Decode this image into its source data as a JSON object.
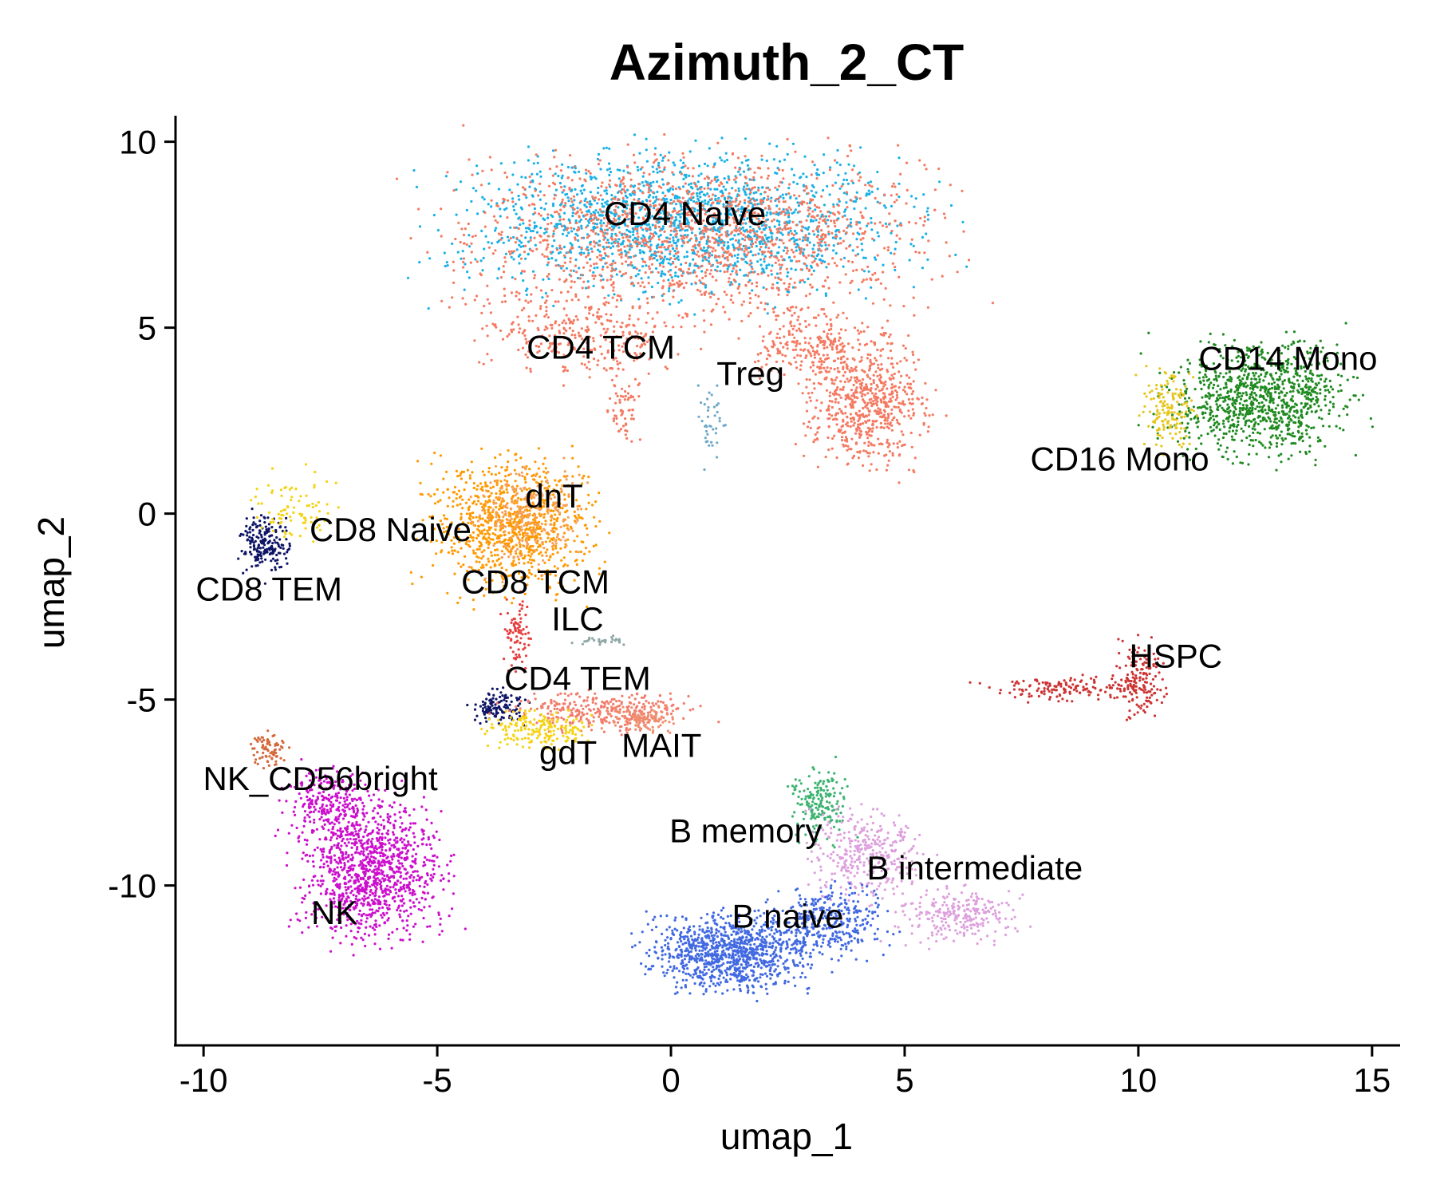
{
  "chart_data": {
    "type": "scatter",
    "title": "Azimuth_2_CT",
    "xlabel": "umap_1",
    "ylabel": "umap_2",
    "xlim": [
      -10.6,
      15.6
    ],
    "ylim": [
      -14.3,
      10.7
    ],
    "xticks": [
      -10,
      -5,
      0,
      5,
      10,
      15
    ],
    "yticks": [
      -10,
      -5,
      0,
      5,
      10
    ],
    "xtick_labels": [
      "-10",
      "-5",
      "0",
      "5",
      "10",
      "15"
    ],
    "ytick_labels": [
      "-10",
      "-5",
      "0",
      "5",
      "10"
    ],
    "grid": false,
    "legend": "none",
    "series": [
      {
        "name": "CD4 Naive",
        "color": "#1AB1E6",
        "label": {
          "x": 0.3,
          "y": 8.0
        },
        "blobs": [
          {
            "cx": 0.3,
            "cy": 7.8,
            "rx": 4.0,
            "ry": 1.6,
            "n": 1700
          }
        ]
      },
      {
        "name": "CD4 TCM",
        "color": "#F47A62",
        "label": {
          "x": -1.5,
          "y": 4.4
        },
        "blobs": [
          {
            "cx": 0.5,
            "cy": 7.5,
            "rx": 4.2,
            "ry": 1.9,
            "n": 1500
          },
          {
            "cx": -1.8,
            "cy": 4.8,
            "rx": 1.8,
            "ry": 0.9,
            "n": 300
          },
          {
            "cx": 4.2,
            "cy": 3.0,
            "rx": 1.1,
            "ry": 1.5,
            "n": 650
          },
          {
            "cx": 3.0,
            "cy": 4.5,
            "rx": 1.0,
            "ry": 0.8,
            "n": 220
          },
          {
            "cx": -1.0,
            "cy": 2.8,
            "rx": 0.3,
            "ry": 0.8,
            "n": 60
          }
        ]
      },
      {
        "name": "Treg",
        "color": "#6FA8C9",
        "label": {
          "x": 1.7,
          "y": 3.7
        },
        "blobs": [
          {
            "cx": 0.9,
            "cy": 2.5,
            "rx": 0.25,
            "ry": 0.9,
            "n": 40
          }
        ]
      },
      {
        "name": "dnT",
        "color": "#FF9900",
        "label": {
          "x": -2.5,
          "y": 0.4
        },
        "blobs": [
          {
            "cx": -3.4,
            "cy": -0.3,
            "rx": 1.4,
            "ry": 1.5,
            "n": 900
          }
        ]
      },
      {
        "name": "CD8 Naive",
        "color": "#F5A05A",
        "label": {
          "x": -6.0,
          "y": -0.5
        },
        "blobs": [
          {
            "cx": -3.0,
            "cy": 0.0,
            "rx": 1.0,
            "ry": 1.2,
            "n": 250
          }
        ]
      },
      {
        "name": "CD8 TCM",
        "color": "#E63E3E",
        "label": {
          "x": -2.9,
          "y": -1.9
        },
        "blobs": [
          {
            "cx": -3.3,
            "cy": -3.2,
            "rx": 0.25,
            "ry": 0.9,
            "n": 80
          }
        ]
      },
      {
        "name": "CD8 TEM",
        "color": "#0E1466",
        "label": {
          "x": -8.6,
          "y": -2.1
        },
        "blobs": [
          {
            "cx": -8.7,
            "cy": -0.8,
            "rx": 0.45,
            "ry": 0.7,
            "n": 200
          },
          {
            "cx": -3.7,
            "cy": -5.2,
            "rx": 0.5,
            "ry": 0.4,
            "n": 120
          }
        ]
      },
      {
        "name": "ILC",
        "color": "#8FA8A8",
        "label": {
          "x": -2.0,
          "y": -2.9
        },
        "blobs": [
          {
            "cx": -1.5,
            "cy": -3.4,
            "rx": 0.6,
            "ry": 0.1,
            "n": 30
          }
        ]
      },
      {
        "name": "CD4 TEM",
        "color": "#F27B6A",
        "label": {
          "x": -2.0,
          "y": -4.5
        },
        "blobs": [
          {
            "cx": -1.5,
            "cy": -5.3,
            "rx": 1.6,
            "ry": 0.45,
            "n": 300
          }
        ]
      },
      {
        "name": "gdT",
        "color": "#F5D314",
        "label": {
          "x": -2.2,
          "y": -6.5
        },
        "blobs": [
          {
            "cx": -2.8,
            "cy": -5.8,
            "rx": 0.9,
            "ry": 0.45,
            "n": 200
          },
          {
            "cx": -8.0,
            "cy": 0.2,
            "rx": 0.8,
            "ry": 0.8,
            "n": 90
          }
        ]
      },
      {
        "name": "MAIT",
        "color": "#F08C6E",
        "label": {
          "x": -0.2,
          "y": -6.3
        },
        "blobs": [
          {
            "cx": -0.7,
            "cy": -5.5,
            "rx": 0.7,
            "ry": 0.35,
            "n": 120
          }
        ]
      },
      {
        "name": "NK_CD56bright",
        "color": "#D4683A",
        "label": {
          "x": -7.5,
          "y": -7.2
        },
        "blobs": [
          {
            "cx": -8.6,
            "cy": -6.3,
            "rx": 0.3,
            "ry": 0.35,
            "n": 80
          }
        ]
      },
      {
        "name": "NK",
        "color": "#CC0FCC",
        "label": {
          "x": -7.2,
          "y": -10.8
        },
        "blobs": [
          {
            "cx": -6.4,
            "cy": -9.6,
            "rx": 1.3,
            "ry": 1.6,
            "n": 1100
          },
          {
            "cx": -7.3,
            "cy": -7.8,
            "rx": 0.8,
            "ry": 0.8,
            "n": 250
          }
        ]
      },
      {
        "name": "B memory",
        "color": "#3CB371",
        "label": {
          "x": 1.6,
          "y": -8.6
        },
        "blobs": [
          {
            "cx": 3.2,
            "cy": -7.8,
            "rx": 0.5,
            "ry": 0.8,
            "n": 180
          }
        ]
      },
      {
        "name": "B intermediate",
        "color": "#DDA0DD",
        "label": {
          "x": 6.5,
          "y": -9.6
        },
        "blobs": [
          {
            "cx": 4.2,
            "cy": -9.2,
            "rx": 1.0,
            "ry": 1.0,
            "n": 350
          },
          {
            "cx": 6.2,
            "cy": -10.8,
            "rx": 1.1,
            "ry": 0.6,
            "n": 250
          }
        ]
      },
      {
        "name": "B naive",
        "color": "#4169E1",
        "label": {
          "x": 2.5,
          "y": -10.9
        },
        "blobs": [
          {
            "cx": 1.3,
            "cy": -11.8,
            "rx": 1.4,
            "ry": 0.9,
            "n": 1000
          },
          {
            "cx": 3.4,
            "cy": -11.0,
            "rx": 1.0,
            "ry": 0.8,
            "n": 350
          }
        ]
      },
      {
        "name": "CD14 Mono",
        "color": "#1F8A1F",
        "label": {
          "x": 13.2,
          "y": 4.1
        },
        "blobs": [
          {
            "cx": 12.6,
            "cy": 3.1,
            "rx": 1.6,
            "ry": 1.3,
            "n": 1000
          }
        ]
      },
      {
        "name": "CD16 Mono",
        "color": "#E6C619",
        "label": {
          "x": 9.6,
          "y": 1.4
        },
        "blobs": [
          {
            "cx": 10.6,
            "cy": 2.8,
            "rx": 0.5,
            "ry": 0.9,
            "n": 150
          }
        ]
      },
      {
        "name": "HSPC",
        "color": "#CC3333",
        "label": {
          "x": 10.8,
          "y": -3.9
        },
        "blobs": [
          {
            "cx": 8.5,
            "cy": -4.7,
            "rx": 1.5,
            "ry": 0.3,
            "n": 150
          },
          {
            "cx": 10.0,
            "cy": -4.5,
            "rx": 0.45,
            "ry": 0.9,
            "n": 150
          }
        ]
      }
    ]
  }
}
